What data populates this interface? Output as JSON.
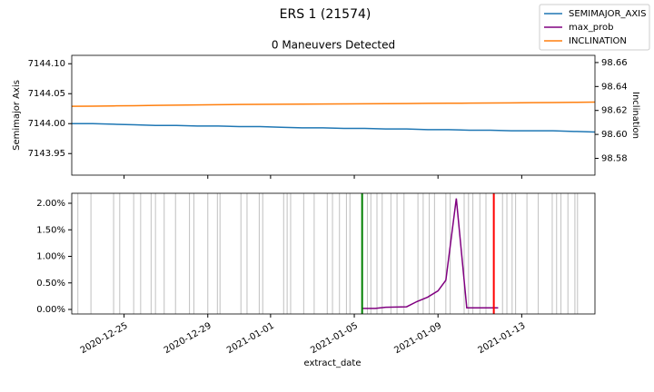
{
  "title": "ERS 1 (21574)",
  "chart_data": [
    {
      "type": "line",
      "title": "0 Maneuvers Detected",
      "ylabel": "Semimajor Axis",
      "y2label": "Inclination",
      "x": [
        "2020-12-22T12:00",
        "2020-12-23T12:00",
        "2020-12-24T12:00",
        "2020-12-25T12:00",
        "2020-12-26T12:00",
        "2020-12-27T12:00",
        "2020-12-28T12:00",
        "2020-12-29T12:00",
        "2020-12-30T12:00",
        "2020-12-31T12:00",
        "2021-01-01T12:00",
        "2021-01-02T12:00",
        "2021-01-03T12:00",
        "2021-01-04T12:00",
        "2021-01-05T12:00",
        "2021-01-06T12:00",
        "2021-01-07T12:00",
        "2021-01-08T12:00",
        "2021-01-09T12:00",
        "2021-01-10T12:00",
        "2021-01-11T12:00",
        "2021-01-12T12:00",
        "2021-01-13T12:00",
        "2021-01-14T12:00",
        "2021-01-15T12:00",
        "2021-01-16T12:00"
      ],
      "series": [
        {
          "name": "SEMIMAJOR_AXIS",
          "color": "#1f77b4",
          "values": [
            7144.0,
            7144.0,
            7143.999,
            7143.998,
            7143.997,
            7143.997,
            7143.996,
            7143.996,
            7143.995,
            7143.995,
            7143.994,
            7143.993,
            7143.993,
            7143.992,
            7143.992,
            7143.991,
            7143.991,
            7143.99,
            7143.99,
            7143.989,
            7143.989,
            7143.988,
            7143.988,
            7143.988,
            7143.987,
            7143.986
          ]
        },
        {
          "name": "INCLINATION",
          "color": "#ff7f0e",
          "axis": "y2",
          "values": [
            98.6235,
            98.6236,
            98.6238,
            98.624,
            98.6242,
            98.6244,
            98.6246,
            98.6248,
            98.625,
            98.6251,
            98.6252,
            98.6253,
            98.6254,
            98.6255,
            98.6256,
            98.6257,
            98.6258,
            98.6259,
            98.626,
            98.6261,
            98.6262,
            98.6263,
            98.6265,
            98.6266,
            98.6268,
            98.627
          ]
        }
      ],
      "xlim": [
        "2020-12-22T12:00",
        "2021-01-16T12:00"
      ],
      "ylim": [
        7143.914,
        7144.114
      ],
      "yticks": [
        7143.95,
        {
          "value": 7144.0,
          "label": "7144.00"
        },
        7144.05,
        {
          "value": 7144.1,
          "label": "7144.10"
        }
      ],
      "y2lim": [
        98.566,
        98.666
      ],
      "y2ticks": [
        98.58,
        {
          "value": 98.6,
          "label": "98.60"
        },
        98.62,
        98.64,
        98.66
      ]
    },
    {
      "type": "line",
      "xlabel": "extract_date",
      "x": [
        "2021-01-05T09:00",
        "2021-01-06T00:00",
        "2021-01-06T12:00",
        "2021-01-07T12:00",
        "2021-01-08T00:00",
        "2021-01-08T12:00",
        "2021-01-09T00:00",
        "2021-01-09T09:00",
        "2021-01-09T21:00",
        "2021-01-10T09:00",
        "2021-01-11T00:00",
        "2021-01-11T12:00",
        "2021-01-11T21:00"
      ],
      "series": [
        {
          "name": "max_prob",
          "color": "#800080",
          "values": [
            0.02,
            0.02,
            0.04,
            0.05,
            0.15,
            0.23,
            0.35,
            0.55,
            2.09,
            0.03,
            0.03,
            0.03,
            0.03
          ]
        }
      ],
      "xlim": [
        "2020-12-22T12:00",
        "2021-01-16T12:00"
      ],
      "xticks": [
        "2020-12-25",
        "2020-12-29",
        "2021-01-01",
        "2021-01-05",
        "2021-01-09",
        "2021-01-13"
      ],
      "ylim": [
        -0.085,
        2.188
      ],
      "yticks": [
        {
          "value": 0,
          "label": "0.00%"
        },
        {
          "value": 0.5,
          "label": "0.50%"
        },
        {
          "value": 1,
          "label": "1.00%"
        },
        {
          "value": 1.5,
          "label": "1.50%"
        },
        {
          "value": 2,
          "label": "2.00%"
        }
      ],
      "vline_color": "#c0c0c0",
      "vlines": [
        "2020-12-22T19:00",
        "2020-12-23T10:00",
        "2020-12-24T12:00",
        "2020-12-24T19:00",
        "2020-12-25T11:00",
        "2020-12-25T19:00",
        "2020-12-26T07:00",
        "2020-12-26T12:00",
        "2020-12-26T22:00",
        "2020-12-27T11:00",
        "2020-12-28T03:00",
        "2020-12-28T08:00",
        "2020-12-29T00:00",
        "2020-12-29T11:00",
        "2020-12-29T14:00",
        "2020-12-30T14:00",
        "2020-12-30T21:00",
        "2020-12-31T11:00",
        "2020-12-31T15:00",
        "2021-01-01T15:00",
        "2021-01-01T19:00",
        "2021-01-01T23:00",
        "2021-01-02T14:00",
        "2021-01-03T02:00",
        "2021-01-03T17:00",
        "2021-01-03T23:00",
        "2021-01-04T07:00",
        "2021-01-04T15:00",
        "2021-01-04T19:00",
        "2021-01-05T15:00",
        "2021-01-05T19:00",
        "2021-01-06T02:00",
        "2021-01-06T08:00",
        "2021-01-06T18:00",
        "2021-01-07T01:00",
        "2021-01-07T09:00",
        "2021-01-08T01:00",
        "2021-01-08T07:00",
        "2021-01-08T14:00",
        "2021-01-08T20:00",
        "2021-01-09T09:00",
        "2021-01-09T14:00",
        "2021-01-10T06:00",
        "2021-01-10T11:00",
        "2021-01-10T16:00",
        "2021-01-11T00:00",
        "2021-01-11T07:00",
        "2021-01-12T02:00",
        "2021-01-12T07:00",
        "2021-01-12T13:00",
        "2021-01-12T17:00",
        "2021-01-13T06:00",
        "2021-01-13T19:00",
        "2021-01-14T11:00",
        "2021-01-14T16:00",
        "2021-01-14T21:00",
        "2021-01-15T05:00",
        "2021-01-15T13:00",
        "2021-01-15T16:00"
      ],
      "markers": [
        {
          "x": "2021-01-05T09:00",
          "color": "#008000"
        },
        {
          "x": "2021-01-11T16:00",
          "color": "#ff0000"
        }
      ]
    }
  ]
}
